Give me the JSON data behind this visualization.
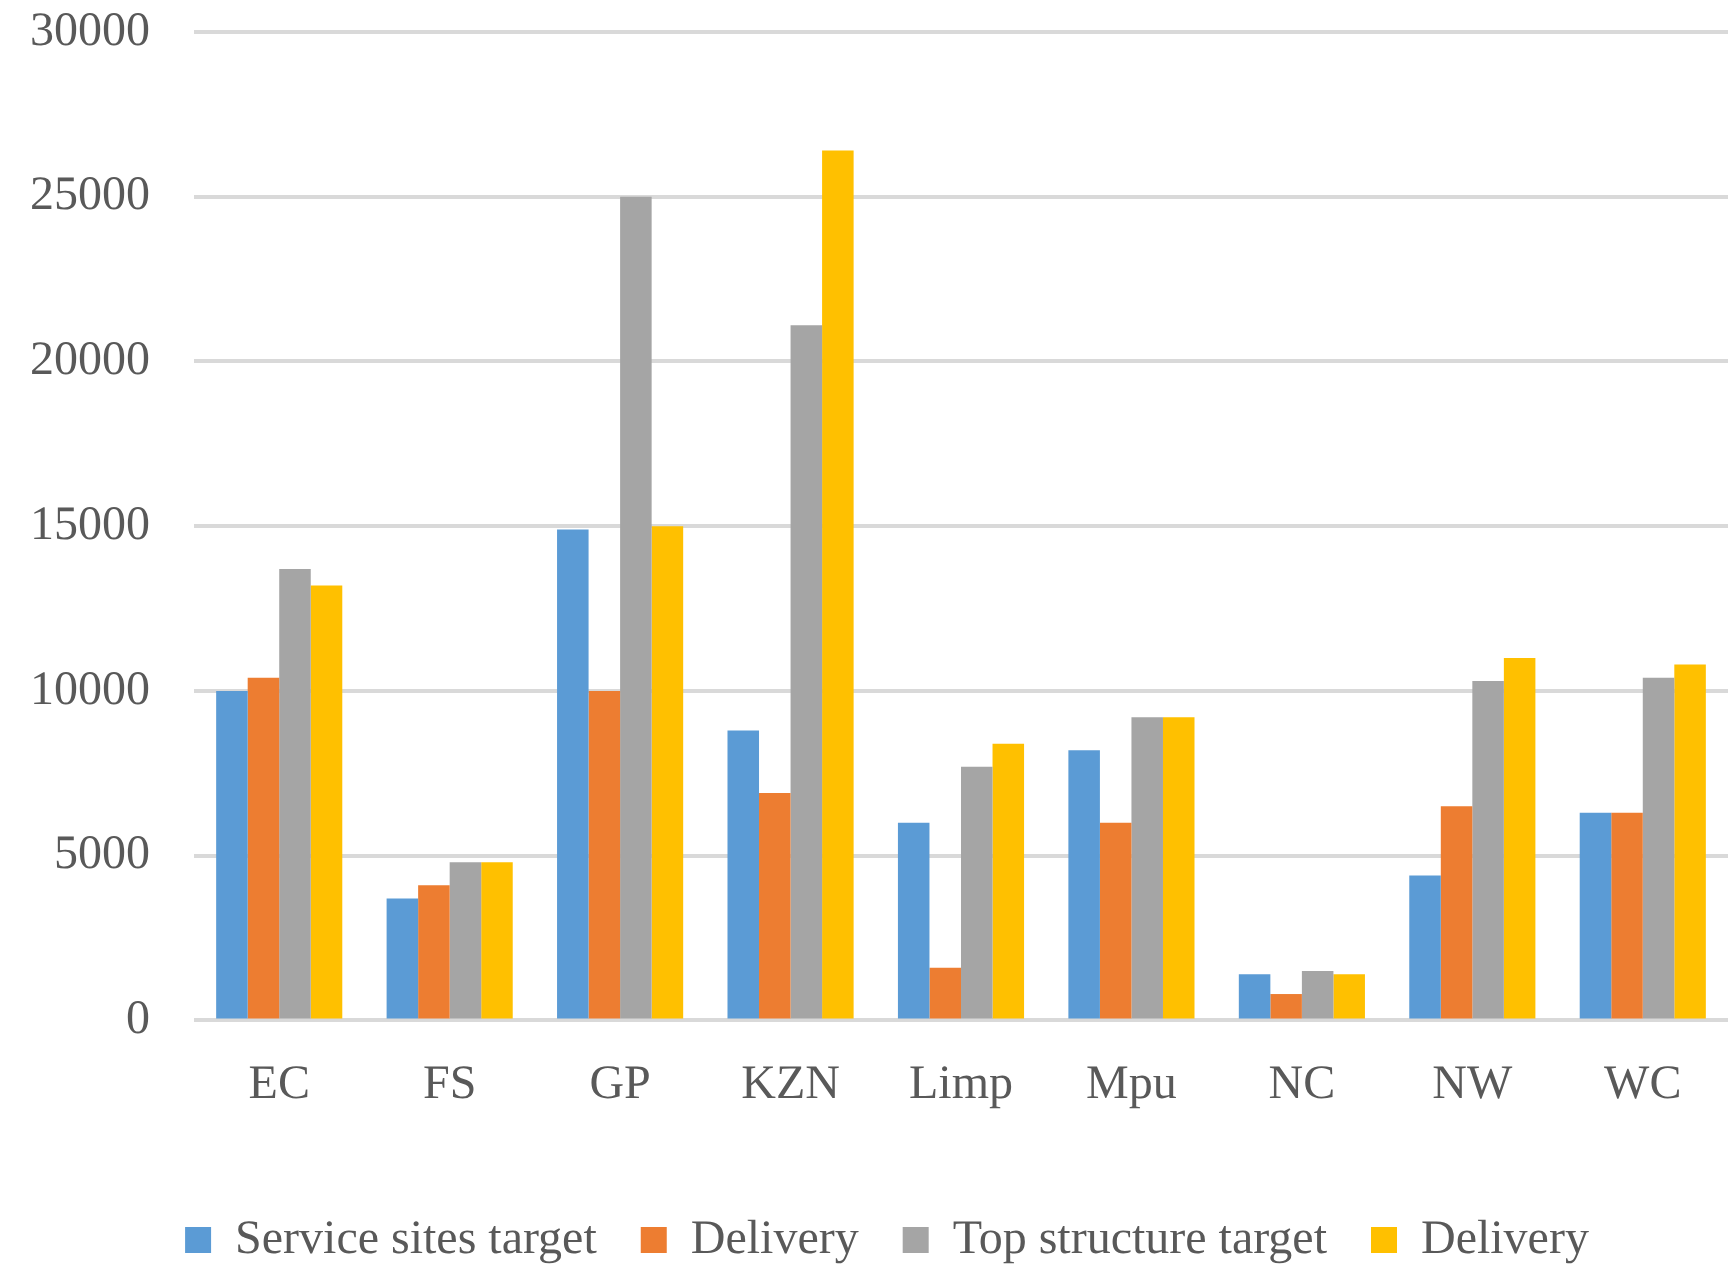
{
  "chart_data": {
    "type": "bar",
    "categories": [
      "EC",
      "FS",
      "GP",
      "KZN",
      "Limp",
      "Mpu",
      "NC",
      "NW",
      "WC"
    ],
    "series": [
      {
        "name": "Service sites target",
        "color": "#5b9bd5",
        "values": [
          10000,
          3700,
          14900,
          8800,
          6000,
          8200,
          1400,
          4400,
          6300
        ]
      },
      {
        "name": "Delivery",
        "color": "#ed7d31",
        "values": [
          10400,
          4100,
          10000,
          6900,
          1600,
          6000,
          800,
          6500,
          6300
        ]
      },
      {
        "name": "Top structure target",
        "color": "#a5a5a5",
        "values": [
          13700,
          4800,
          25000,
          21100,
          7700,
          9200,
          1500,
          10300,
          10400
        ]
      },
      {
        "name": "Delivery",
        "color": "#ffc000",
        "values": [
          13200,
          4800,
          15000,
          26400,
          8400,
          9200,
          1400,
          11000,
          10800
        ]
      }
    ],
    "ylim": [
      0,
      30000
    ],
    "yticks": [
      0,
      5000,
      10000,
      15000,
      20000,
      25000,
      30000
    ],
    "grid": "y",
    "legend": "bottom"
  }
}
